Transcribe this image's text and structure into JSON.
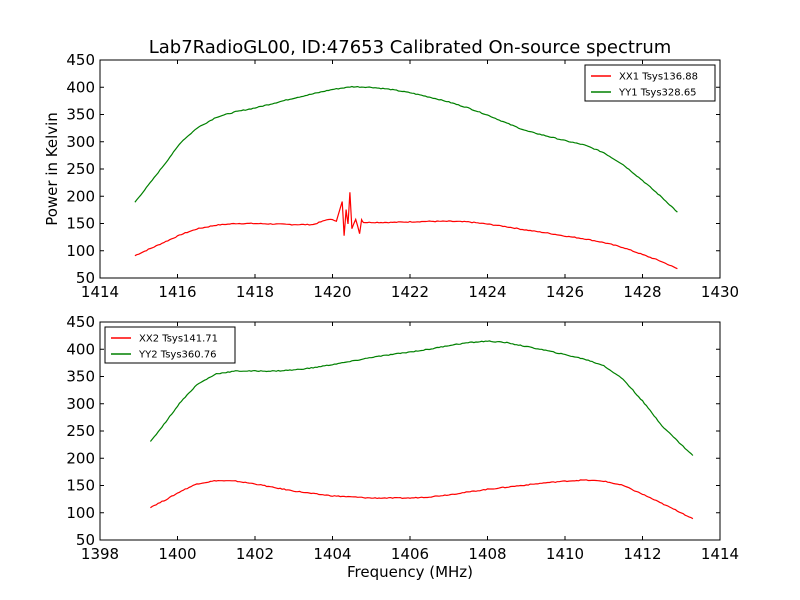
{
  "chart_data": [
    {
      "type": "line",
      "title": "Lab7RadioGL00, ID:47653 Calibrated On-source spectrum",
      "xlabel": "",
      "ylabel": "Power in Kelvin",
      "xlim": [
        1414,
        1430
      ],
      "ylim": [
        50,
        450
      ],
      "xticks": [
        1414,
        1416,
        1418,
        1420,
        1422,
        1424,
        1426,
        1428,
        1430
      ],
      "yticks": [
        50,
        100,
        150,
        200,
        250,
        300,
        350,
        400,
        450
      ],
      "legend_position": "top-right",
      "series": [
        {
          "name": "XX1 Tsys136.88",
          "color": "#ff0000",
          "x": [
            1414.9,
            1415.3,
            1415.7,
            1416.1,
            1416.5,
            1417.0,
            1417.5,
            1418.0,
            1418.5,
            1419.0,
            1419.5,
            1419.9,
            1420.1,
            1420.25,
            1420.3,
            1420.35,
            1420.4,
            1420.45,
            1420.5,
            1420.6,
            1420.7,
            1420.75,
            1420.8,
            1421.0,
            1421.5,
            1422.0,
            1422.5,
            1423.0,
            1423.5,
            1424.0,
            1424.5,
            1425.0,
            1425.5,
            1426.0,
            1426.5,
            1427.0,
            1427.5,
            1428.0,
            1428.5,
            1428.9
          ],
          "values": [
            91,
            104,
            117,
            130,
            140,
            147,
            150,
            150,
            149,
            148,
            148,
            158,
            155,
            190,
            127,
            175,
            150,
            208,
            140,
            158,
            132,
            157,
            152,
            152,
            152,
            153,
            154,
            154,
            153,
            149,
            144,
            138,
            133,
            127,
            122,
            115,
            106,
            93,
            80,
            67
          ]
        },
        {
          "name": "YY1 Tsys328.65",
          "color": "#008000",
          "x": [
            1414.9,
            1415.3,
            1415.7,
            1416.1,
            1416.5,
            1417.0,
            1417.5,
            1418.0,
            1418.5,
            1419.0,
            1419.5,
            1420.0,
            1420.5,
            1421.0,
            1421.5,
            1422.0,
            1422.5,
            1423.0,
            1423.5,
            1424.0,
            1424.5,
            1425.0,
            1425.5,
            1426.0,
            1426.5,
            1427.0,
            1427.5,
            1428.0,
            1428.5,
            1428.9
          ],
          "values": [
            189,
            225,
            262,
            300,
            325,
            345,
            355,
            362,
            371,
            380,
            388,
            396,
            401,
            400,
            396,
            390,
            382,
            373,
            362,
            349,
            334,
            320,
            311,
            302,
            294,
            280,
            258,
            229,
            198,
            171
          ]
        }
      ]
    },
    {
      "type": "line",
      "title": "",
      "xlabel": "Frequency (MHz)",
      "ylabel": "",
      "xlim": [
        1398,
        1414
      ],
      "ylim": [
        50,
        450
      ],
      "xticks": [
        1398,
        1400,
        1402,
        1404,
        1406,
        1408,
        1410,
        1412,
        1414
      ],
      "yticks": [
        50,
        100,
        150,
        200,
        250,
        300,
        350,
        400,
        450
      ],
      "legend_position": "top-left",
      "series": [
        {
          "name": "XX2 Tsys141.71",
          "color": "#ff0000",
          "x": [
            1399.3,
            1399.7,
            1400.1,
            1400.5,
            1401.0,
            1401.5,
            1402.0,
            1402.5,
            1403.0,
            1403.5,
            1404.0,
            1404.5,
            1405.0,
            1405.5,
            1406.0,
            1406.5,
            1407.0,
            1407.5,
            1408.0,
            1408.5,
            1409.0,
            1409.5,
            1410.0,
            1410.5,
            1411.0,
            1411.5,
            1412.0,
            1412.5,
            1413.0,
            1413.3
          ],
          "values": [
            110,
            124,
            140,
            153,
            159,
            158,
            153,
            146,
            140,
            135,
            131,
            129,
            127,
            127,
            127,
            129,
            133,
            138,
            143,
            147,
            151,
            155,
            158,
            160,
            158,
            150,
            134,
            117,
            100,
            89
          ]
        },
        {
          "name": "YY2 Tsys360.76",
          "color": "#008000",
          "x": [
            1399.3,
            1399.7,
            1400.1,
            1400.5,
            1401.0,
            1401.5,
            1402.0,
            1402.5,
            1403.0,
            1403.5,
            1404.0,
            1404.5,
            1405.0,
            1405.5,
            1406.0,
            1406.5,
            1407.0,
            1407.5,
            1408.0,
            1408.5,
            1409.0,
            1409.5,
            1410.0,
            1410.5,
            1411.0,
            1411.5,
            1412.0,
            1412.5,
            1413.0,
            1413.3
          ],
          "values": [
            230,
            267,
            305,
            335,
            355,
            360,
            360,
            360,
            362,
            366,
            372,
            378,
            385,
            390,
            395,
            400,
            407,
            412,
            415,
            412,
            405,
            398,
            390,
            382,
            370,
            345,
            305,
            260,
            225,
            205
          ]
        }
      ]
    }
  ]
}
